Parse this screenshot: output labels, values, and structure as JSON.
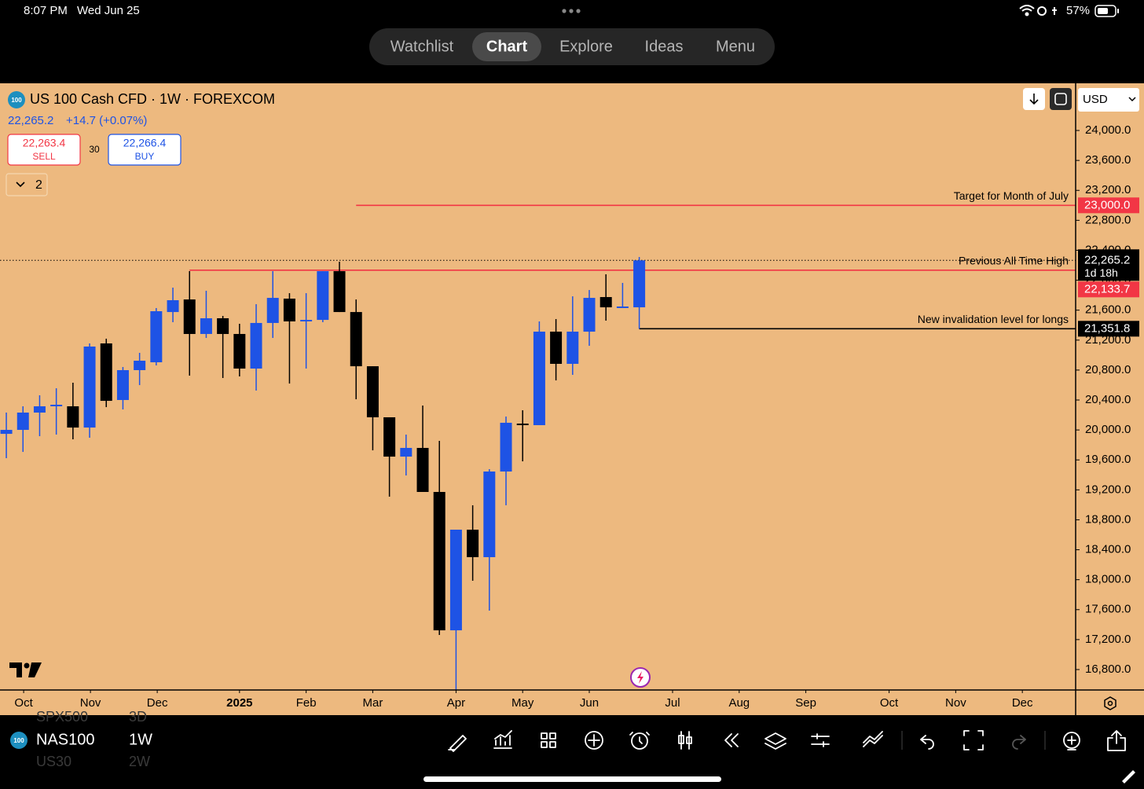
{
  "status_bar": {
    "time": "8:07 PM",
    "date": "Wed Jun 25",
    "battery": "57%"
  },
  "nav": {
    "tabs": [
      "Watchlist",
      "Chart",
      "Explore",
      "Ideas",
      "Menu"
    ],
    "active": 1
  },
  "symbol_header": {
    "badge": "100",
    "title": "US 100 Cash CFD · 1W · FOREXCOM",
    "price": "22,265.2",
    "change": "+14.7 (+0.07%)",
    "sell": {
      "price": "22,263.4",
      "label": "SELL"
    },
    "spread": "30",
    "buy": {
      "price": "22,266.4",
      "label": "BUY"
    },
    "indicators": "2",
    "currency": "USD"
  },
  "chart_data": {
    "type": "candlestick",
    "x": [
      0,
      1,
      2,
      3,
      4,
      5,
      6,
      7,
      8,
      9,
      10,
      11,
      12,
      13,
      14,
      15,
      16,
      17,
      18,
      19,
      20,
      21,
      22,
      23,
      24,
      25,
      26,
      27,
      28,
      29,
      30,
      31,
      32,
      33,
      34,
      35,
      36,
      37,
      38
    ],
    "open": [
      19948,
      20001,
      20232,
      20316,
      20316,
      20032,
      21156,
      20400,
      20799,
      20904,
      21575,
      21743,
      21282,
      21492,
      21282,
      20820,
      21429,
      21754,
      21450,
      21470,
      22121,
      21575,
      20851,
      20169,
      19644,
      19760,
      19172,
      17324,
      18668,
      18301,
      19445,
      20085,
      20064,
      21313,
      20883,
      21313,
      21775,
      21628,
      21638
    ],
    "high": [
      20232,
      20316,
      20463,
      20557,
      20631,
      21156,
      21219,
      20841,
      21030,
      21628,
      21901,
      22121,
      21859,
      21523,
      21418,
      21680,
      22121,
      21827,
      21827,
      22121,
      22247,
      21743,
      20851,
      20169,
      19938,
      20326,
      19854,
      18668,
      18994,
      19476,
      20179,
      20263,
      21450,
      21481,
      21785,
      21869,
      22079,
      21964,
      22310
    ],
    "low": [
      19623,
      19707,
      19917,
      19938,
      19875,
      19896,
      20305,
      20274,
      20599,
      20862,
      21439,
      20725,
      21229,
      20694,
      20715,
      20526,
      21229,
      20620,
      20820,
      21439,
      21575,
      20410,
      19728,
      19109,
      19392,
      19172,
      17262,
      16527,
      17986,
      17587,
      18994,
      19581,
      20064,
      20662,
      20736,
      21124,
      21460,
      21628,
      21351.8
    ],
    "close": [
      20001,
      20232,
      20316,
      20337,
      20032,
      21114,
      20389,
      20799,
      20925,
      21586,
      21733,
      21282,
      21492,
      21282,
      20820,
      21429,
      21764,
      21450,
      21470,
      22121,
      21575,
      20851,
      20169,
      19644,
      19760,
      19172,
      17324,
      18668,
      18301,
      19445,
      20096,
      20064,
      21313,
      20883,
      21313,
      21764,
      21638,
      21649,
      22265.2
    ],
    "up_color": "#1e53e5",
    "down_color": "#000000",
    "xlim": [
      -0.38,
      64.2
    ],
    "xticks": [
      {
        "value": 1.04,
        "label": "Oct"
      },
      {
        "value": 5.05,
        "label": "Nov"
      },
      {
        "value": 9.06,
        "label": "Dec"
      },
      {
        "value": 14.0,
        "label": "2025"
      },
      {
        "value": 18.0,
        "label": "Feb"
      },
      {
        "value": 22.0,
        "label": "Mar"
      },
      {
        "value": 27.0,
        "label": "Apr"
      },
      {
        "value": 31.0,
        "label": "May"
      },
      {
        "value": 35.0,
        "label": "Jun"
      },
      {
        "value": 40.0,
        "label": "Jul"
      },
      {
        "value": 44.0,
        "label": "Aug"
      },
      {
        "value": 48.0,
        "label": "Sep"
      },
      {
        "value": 53.0,
        "label": "Oct"
      },
      {
        "value": 57.0,
        "label": "Nov"
      },
      {
        "value": 61.0,
        "label": "Dec"
      }
    ],
    "ylim": [
      16527,
      24630
    ],
    "yticks": [
      {
        "value": 16800,
        "label": "16,800.0"
      },
      {
        "value": 17200,
        "label": "17,200.0"
      },
      {
        "value": 17600,
        "label": "17,600.0"
      },
      {
        "value": 18000,
        "label": "18,000.0"
      },
      {
        "value": 18400,
        "label": "18,400.0"
      },
      {
        "value": 18800,
        "label": "18,800.0"
      },
      {
        "value": 19200,
        "label": "19,200.0"
      },
      {
        "value": 19600,
        "label": "19,600.0"
      },
      {
        "value": 20000,
        "label": "20,000.0"
      },
      {
        "value": 20400,
        "label": "20,400.0"
      },
      {
        "value": 20800,
        "label": "20,800.0"
      },
      {
        "value": 21200,
        "label": "21,200.0"
      },
      {
        "value": 21600,
        "label": "21,600.0"
      },
      {
        "value": 22000,
        "label": "22,000.0"
      },
      {
        "value": 22400,
        "label": "22,400.0"
      },
      {
        "value": 22800,
        "label": "22,800.0"
      },
      {
        "value": 23200,
        "label": "23,200.0"
      },
      {
        "value": 23600,
        "label": "23,600.0"
      },
      {
        "value": 24000,
        "label": "24,000.0"
      }
    ],
    "last_price": {
      "value": 22265.2,
      "label": "22,265.2",
      "countdown": "1d 18h"
    },
    "levels": [
      {
        "text": "Target for Month of July",
        "value": 23000,
        "label": "23,000.0",
        "color": "#f23645",
        "start": 21
      },
      {
        "text": "Previous All Time High",
        "value": 22133.7,
        "label": "22,133.7",
        "color": "#f23645",
        "start": 11
      },
      {
        "text": "New invalidation level for longs",
        "value": 21351.8,
        "label": "21,351.8",
        "color": "#000000",
        "start": 38
      }
    ]
  },
  "toolbar": {
    "symbol": "NAS100",
    "badge": "100",
    "interval": "1W",
    "rows_behind": [
      {
        "symbol": "SPX500",
        "interval": "3D"
      },
      {
        "symbol": "US30",
        "interval": "2W"
      }
    ]
  }
}
